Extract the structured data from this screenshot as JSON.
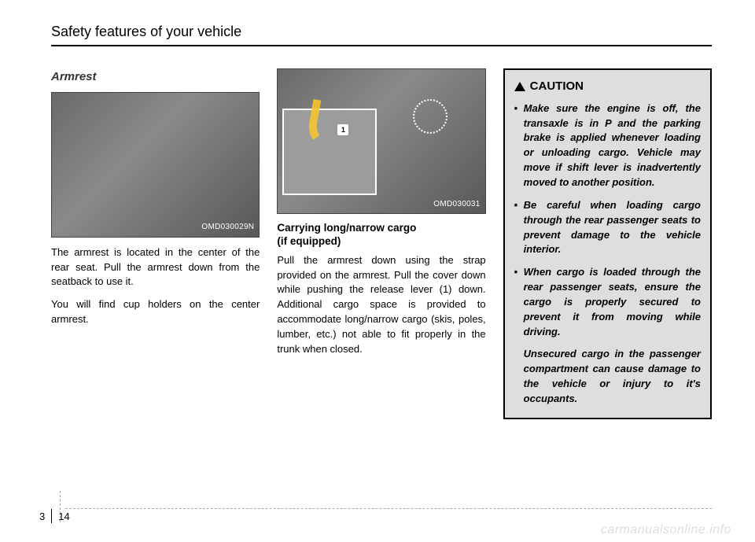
{
  "header": {
    "title": "Safety features of your vehicle"
  },
  "col1": {
    "subhead": "Armrest",
    "figure_label": "OMD030029N",
    "para1": "The armrest is located in the center of the rear seat. Pull the armrest down from the seatback to use it.",
    "para2": "You will find cup holders on the center armrest."
  },
  "col2": {
    "figure_label": "OMD030031",
    "figure_callout": "1",
    "subhead_line1": "Carrying long/narrow cargo",
    "subhead_line2": "(if equipped)",
    "para1": "Pull the armrest down using the strap provided on the armrest. Pull the cover down while pushing the release lever (1) down. Additional cargo space is provided to accommodate long/narrow cargo (skis, poles, lumber, etc.) not able to fit properly in the trunk when closed."
  },
  "col3": {
    "caution_title": "CAUTION",
    "items": [
      "Make sure the engine is off, the transaxle is in P and the parking brake is applied whenever loading or unloading cargo. Vehicle may move if shift lever is inadvertently moved to another position.",
      "Be careful when loading cargo through the rear passenger seats to prevent damage to the vehicle interior.",
      "When cargo is loaded through the rear passenger seats, ensure the cargo is properly secured to prevent it from moving while driving."
    ],
    "tail": "Unsecured cargo in the passenger compartment can cause damage to the vehicle or injury to it's occupants."
  },
  "footer": {
    "chapter": "3",
    "page": "14"
  },
  "watermark": "carmanualsonline.info"
}
